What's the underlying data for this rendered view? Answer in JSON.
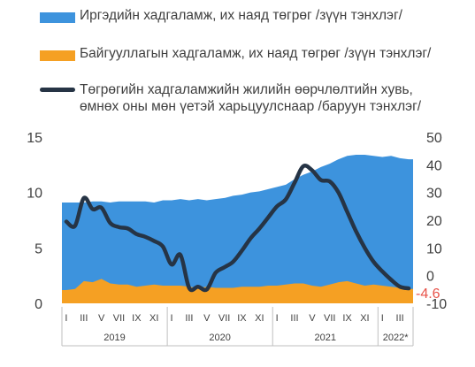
{
  "legend": [
    {
      "label": "Иргэдийн хадгаламж, их наяд төгрөг /зүүн тэнхлэг/",
      "color": "#3d93dd",
      "kind": "area"
    },
    {
      "label": "Байгууллагын хадгаламж, их наяд төгрөг /зүүн тэнхлэг/",
      "color": "#f5a023",
      "kind": "area"
    },
    {
      "label_line1": "Төгрөгийн хадгаламжийн жилийн өөрчлөлтийн хувь,",
      "label_line2": "өмнөх оны мөн үетэй харьцуулснаар /баруун тэнхлэг/",
      "color": "#263445",
      "kind": "line"
    }
  ],
  "chart_data": {
    "type": "area",
    "months": 40,
    "x_tick_labels": [
      "I",
      "III",
      "V",
      "VII",
      "IX",
      "XI",
      "I",
      "III",
      "V",
      "VII",
      "IX",
      "XI",
      "I",
      "III",
      "V",
      "VII",
      "IX",
      "XI",
      "I",
      "III"
    ],
    "year_labels": [
      {
        "label": "2019",
        "start": 0,
        "end": 12
      },
      {
        "label": "2020",
        "start": 12,
        "end": 24
      },
      {
        "label": "2021",
        "start": 24,
        "end": 36
      },
      {
        "label": "2022*",
        "start": 36,
        "end": 40
      }
    ],
    "left_axis": {
      "ticks": [
        0,
        5,
        10,
        15
      ],
      "ylim": [
        0,
        15
      ]
    },
    "right_axis": {
      "ticks": [
        -10,
        0,
        10,
        20,
        30,
        40,
        50
      ],
      "ylim": [
        -10,
        50
      ]
    },
    "series": [
      {
        "name": "Иргэдийн хадгаламж, их наяд төгрөг /зүүн тэнхлэг/",
        "axis": "left",
        "type": "area",
        "color": "#3d93dd",
        "values": [
          9.1,
          9.1,
          9.1,
          9.2,
          9.2,
          9.1,
          9.2,
          9.2,
          9.2,
          9.2,
          9.1,
          9.3,
          9.3,
          9.4,
          9.3,
          9.4,
          9.3,
          9.4,
          9.5,
          9.7,
          9.8,
          10.0,
          10.1,
          10.3,
          10.5,
          10.7,
          11.2,
          11.6,
          11.9,
          12.3,
          12.6,
          13.0,
          13.3,
          13.4,
          13.4,
          13.3,
          13.2,
          13.3,
          13.1,
          13.0
        ]
      },
      {
        "name": "Байгууллагын хадгаламж, их наяд төгрөг /зүүн тэнхлэг/",
        "axis": "left",
        "type": "area",
        "color": "#f5a023",
        "values": [
          1.2,
          1.3,
          2.0,
          1.9,
          2.2,
          1.8,
          1.7,
          1.7,
          1.5,
          1.6,
          1.7,
          1.6,
          1.6,
          1.6,
          1.5,
          1.4,
          1.5,
          1.4,
          1.4,
          1.4,
          1.5,
          1.5,
          1.5,
          1.6,
          1.6,
          1.7,
          1.8,
          1.8,
          1.6,
          1.5,
          1.7,
          1.9,
          2.0,
          1.8,
          1.6,
          1.7,
          1.6,
          1.5,
          1.4,
          1.3
        ]
      },
      {
        "name": "Төгрөгийн хадгаламжийн жилийн өөрчлөлтийн хувь, өмнөх оны мөн үетэй харьцуулснаар /баруун тэнхлэг/",
        "axis": "right",
        "type": "line",
        "color": "#263445",
        "values": [
          19.5,
          18.0,
          28.0,
          24.0,
          24.5,
          19.0,
          17.5,
          17.0,
          15.0,
          14.0,
          12.5,
          10.5,
          4.0,
          7.5,
          -4.5,
          -4.0,
          -5.0,
          1.0,
          3.0,
          5.0,
          9.0,
          13.5,
          17.0,
          21.0,
          25.0,
          27.5,
          33.5,
          39.5,
          38.0,
          34.5,
          34.0,
          30.0,
          23.0,
          16.0,
          10.0,
          5.0,
          1.5,
          -1.5,
          -4.0,
          -4.6
        ]
      }
    ],
    "last_value_label": "-4.6",
    "last_value_color": "#e8534a"
  }
}
